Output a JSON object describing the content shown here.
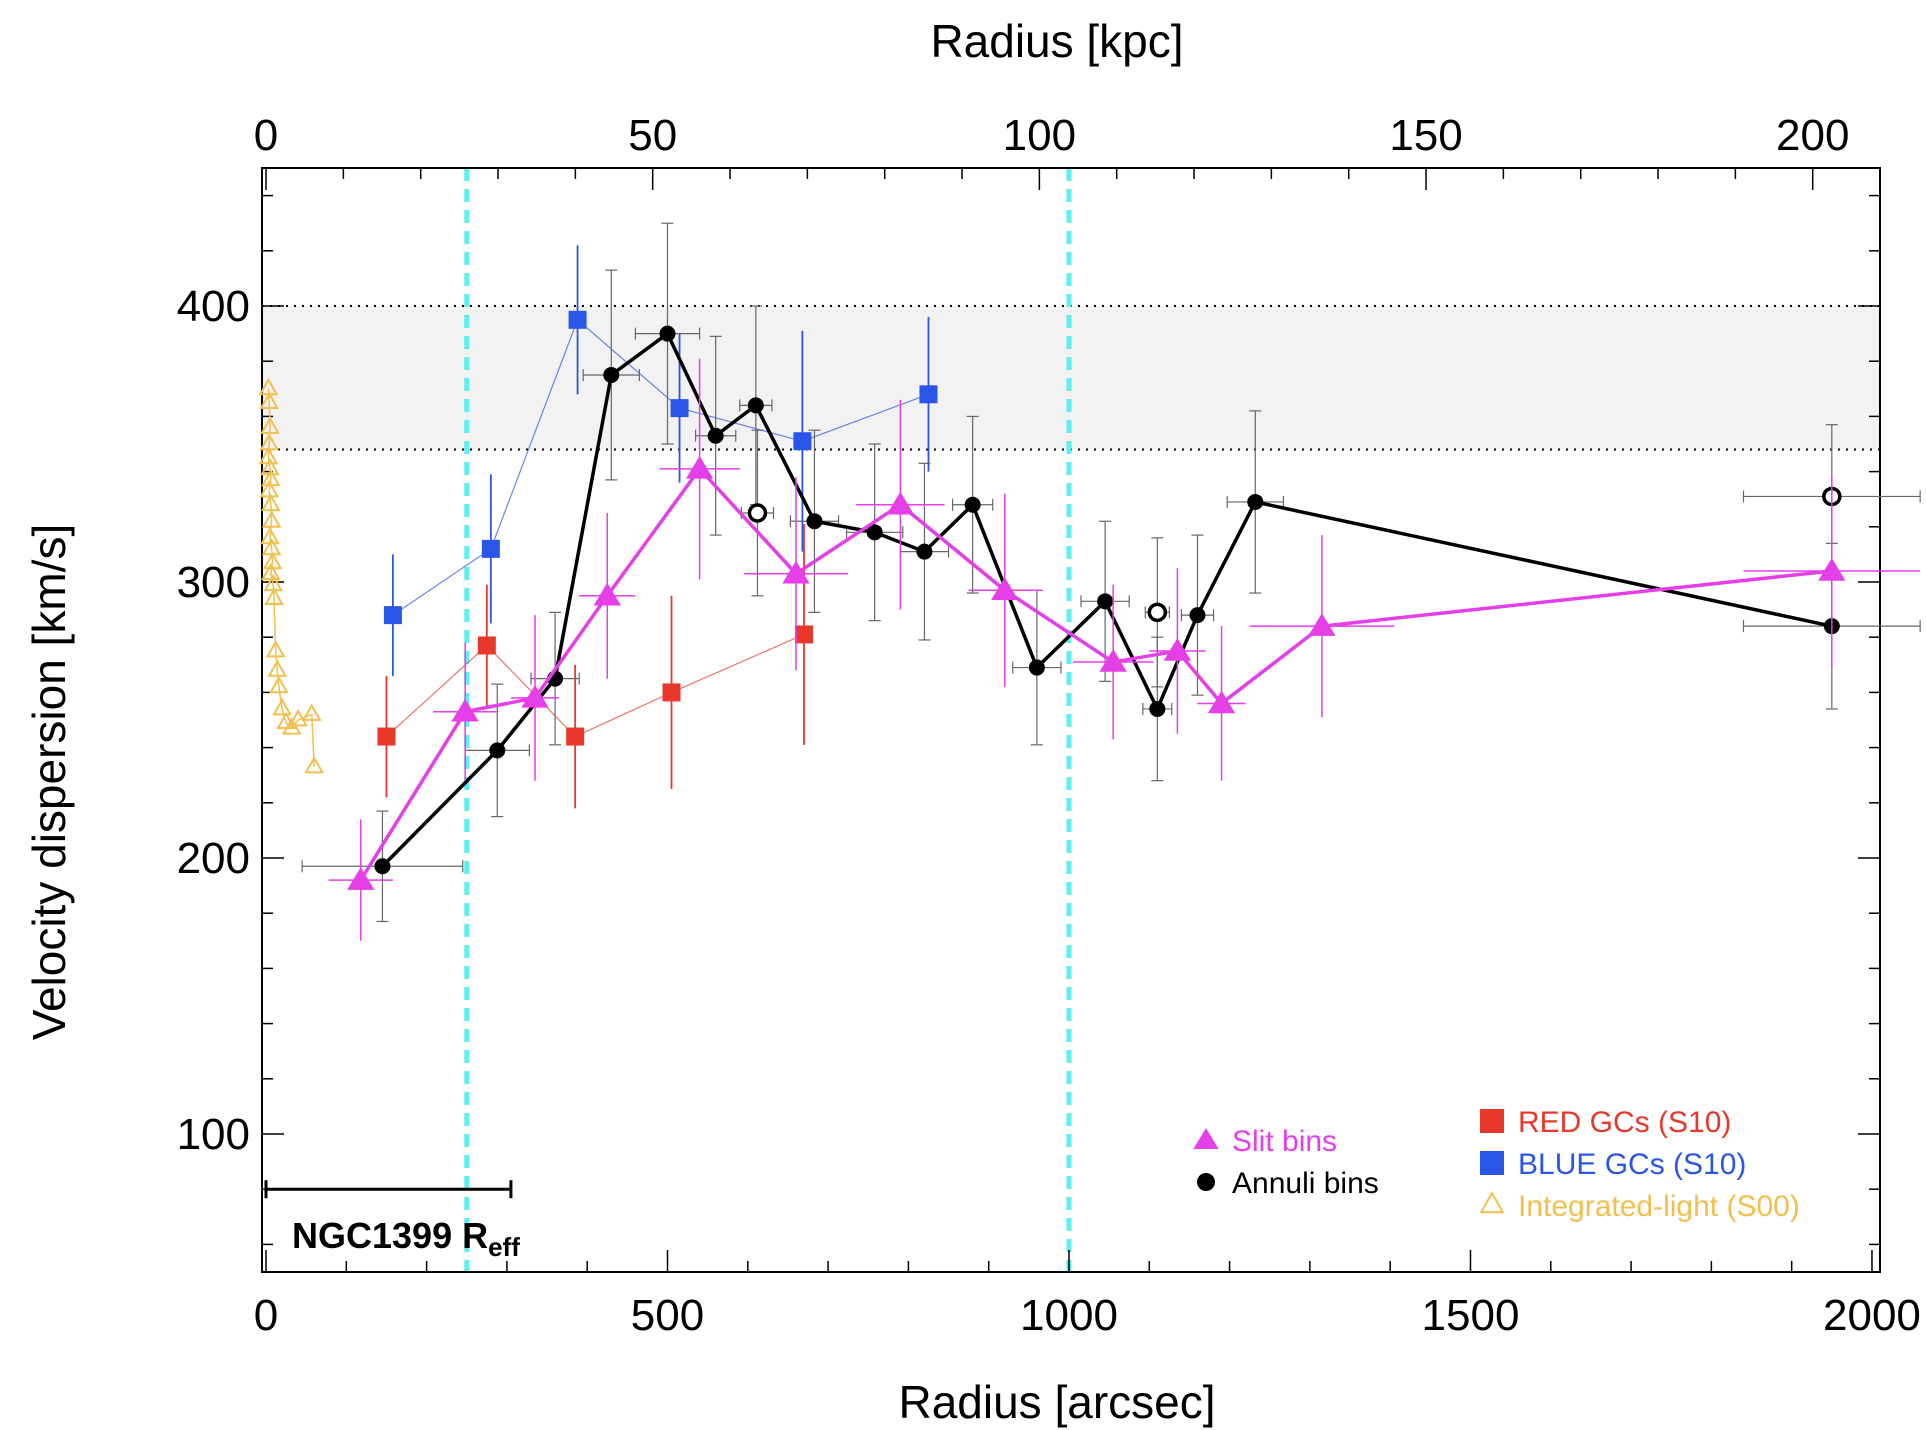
{
  "chart_data": {
    "type": "scatter",
    "xlabel": "Radius [arcsec]",
    "x2label": "Radius [kpc]",
    "ylabel": "Velocity dispersion [km/s]",
    "xlim": [
      -5,
      2010
    ],
    "ylim": [
      50,
      450
    ],
    "x2lim": [
      -0.52,
      208.7
    ],
    "xticks": [
      0,
      500,
      1000,
      1500,
      2000
    ],
    "xtick_labels": [
      "0",
      "500",
      "1000",
      "1500",
      "2000"
    ],
    "x2ticks": [
      0,
      50,
      100,
      150,
      200
    ],
    "x2tick_labels": [
      "0",
      "50",
      "100",
      "150",
      "200"
    ],
    "yticks": [
      100,
      200,
      300,
      400
    ],
    "ytick_labels": [
      "100",
      "200",
      "300",
      "400"
    ],
    "band": {
      "y_low": 348,
      "y_high": 400,
      "color": "#f2f2f2"
    },
    "vlines": [
      250,
      1000
    ],
    "vline_color": "#5cf0f0",
    "reff": {
      "x_start": 0,
      "x_end": 305,
      "y": 80,
      "label": "NGC1399 R",
      "label_sub": "eff"
    },
    "series": [
      {
        "name": "Slit bins",
        "marker": "triangle",
        "color": "#e53fe8",
        "line": true,
        "points": [
          {
            "x": 118,
            "y": 192,
            "xerr": 40,
            "yerr": 22
          },
          {
            "x": 248,
            "y": 253,
            "xerr": 40,
            "yerr": 25
          },
          {
            "x": 335,
            "y": 258,
            "xerr": 30,
            "yerr": 30
          },
          {
            "x": 425,
            "y": 295,
            "xerr": 35,
            "yerr": 30
          },
          {
            "x": 540,
            "y": 341,
            "xerr": 50,
            "yerr": 40
          },
          {
            "x": 660,
            "y": 303,
            "xerr": 65,
            "yerr": 35
          },
          {
            "x": 790,
            "y": 328,
            "xerr": 55,
            "yerr": 38
          },
          {
            "x": 920,
            "y": 297,
            "xerr": 45,
            "yerr": 35
          },
          {
            "x": 1055,
            "y": 271,
            "xerr": 50,
            "yerr": 28
          },
          {
            "x": 1135,
            "y": 275,
            "xerr": 35,
            "yerr": 30
          },
          {
            "x": 1190,
            "y": 256,
            "xerr": 30,
            "yerr": 28
          },
          {
            "x": 1315,
            "y": 284,
            "xerr": 90,
            "yerr": 33
          },
          {
            "x": 1950,
            "y": 304,
            "xerr": 110,
            "yerr": 35
          }
        ]
      },
      {
        "name": "Annuli bins",
        "marker": "circle",
        "color": "#000000",
        "line": true,
        "points": [
          {
            "x": 145,
            "y": 197,
            "xerr": 100,
            "yerr": 20
          },
          {
            "x": 288,
            "y": 239,
            "xerr": 40,
            "yerr": 24
          },
          {
            "x": 360,
            "y": 265,
            "xerr": 30,
            "yerr": 24
          },
          {
            "x": 430,
            "y": 375,
            "xerr": 35,
            "yerr": 38
          },
          {
            "x": 500,
            "y": 390,
            "xerr": 40,
            "yerr": 40
          },
          {
            "x": 560,
            "y": 353,
            "xerr": 25,
            "yerr": 36
          },
          {
            "x": 610,
            "y": 364,
            "xerr": 20,
            "yerr": 36
          },
          {
            "x": 683,
            "y": 322,
            "xerr": 30,
            "yerr": 33
          },
          {
            "x": 758,
            "y": 318,
            "xerr": 35,
            "yerr": 32
          },
          {
            "x": 820,
            "y": 311,
            "xerr": 30,
            "yerr": 32
          },
          {
            "x": 880,
            "y": 328,
            "xerr": 25,
            "yerr": 32
          },
          {
            "x": 960,
            "y": 269,
            "xerr": 30,
            "yerr": 28
          },
          {
            "x": 1045,
            "y": 293,
            "xerr": 30,
            "yerr": 29
          },
          {
            "x": 1110,
            "y": 254,
            "xerr": 18,
            "yerr": 26
          },
          {
            "x": 1160,
            "y": 288,
            "xerr": 20,
            "yerr": 29
          },
          {
            "x": 1232,
            "y": 329,
            "xerr": 35,
            "yerr": 33
          },
          {
            "x": 1950,
            "y": 284,
            "xerr": 110,
            "yerr": 30
          }
        ]
      },
      {
        "name": "Annuli bins (open)",
        "marker": "open-circle",
        "color": "#000000",
        "line": false,
        "points": [
          {
            "x": 612,
            "y": 325,
            "xerr": 20,
            "yerr": 30
          },
          {
            "x": 1110,
            "y": 289,
            "xerr": 15,
            "yerr": 27
          },
          {
            "x": 1950,
            "y": 331,
            "xerr": 110,
            "yerr": 26
          }
        ]
      },
      {
        "name": "RED GCs (S10)",
        "marker": "square",
        "color": "#e8382b",
        "line": true,
        "points": [
          {
            "x": 150,
            "y": 244,
            "yerr": 22
          },
          {
            "x": 275,
            "y": 277,
            "yerr": 22
          },
          {
            "x": 385,
            "y": 244,
            "yerr": 26
          },
          {
            "x": 505,
            "y": 260,
            "yerr": 35
          },
          {
            "x": 670,
            "y": 281,
            "yerr": 40
          }
        ]
      },
      {
        "name": "BLUE GCs (S10)",
        "marker": "square",
        "color": "#2a56e8",
        "line": true,
        "points": [
          {
            "x": 158,
            "y": 288,
            "yerr": 22
          },
          {
            "x": 280,
            "y": 312,
            "yerr": 27
          },
          {
            "x": 388,
            "y": 395,
            "yerr": 27
          },
          {
            "x": 515,
            "y": 363,
            "yerr": 27
          },
          {
            "x": 668,
            "y": 351,
            "yerr": 40
          },
          {
            "x": 825,
            "y": 368,
            "yerr": 28
          }
        ]
      },
      {
        "name": "Integrated-light (S00)",
        "marker": "open-triangle",
        "color": "#f2c04e",
        "line": true,
        "points": [
          {
            "x": 3,
            "y": 370
          },
          {
            "x": 4,
            "y": 365
          },
          {
            "x": 5,
            "y": 356
          },
          {
            "x": 4,
            "y": 350
          },
          {
            "x": 3,
            "y": 345
          },
          {
            "x": 5,
            "y": 341
          },
          {
            "x": 6,
            "y": 337
          },
          {
            "x": 4,
            "y": 333
          },
          {
            "x": 6,
            "y": 328
          },
          {
            "x": 7,
            "y": 322
          },
          {
            "x": 5,
            "y": 316
          },
          {
            "x": 7,
            "y": 312
          },
          {
            "x": 8,
            "y": 307
          },
          {
            "x": 6,
            "y": 303
          },
          {
            "x": 9,
            "y": 299
          },
          {
            "x": 10,
            "y": 294
          },
          {
            "x": 12,
            "y": 275
          },
          {
            "x": 14,
            "y": 268
          },
          {
            "x": 16,
            "y": 262
          },
          {
            "x": 20,
            "y": 254
          },
          {
            "x": 25,
            "y": 249
          },
          {
            "x": 32,
            "y": 247
          },
          {
            "x": 40,
            "y": 250
          },
          {
            "x": 57,
            "y": 252
          },
          {
            "x": 60,
            "y": 233
          }
        ]
      }
    ],
    "legend": {
      "left": [
        {
          "label": "Slit bins",
          "marker": "triangle",
          "color": "#e53fe8",
          "text_color": "#e53fe8"
        },
        {
          "label": "Annuli bins",
          "marker": "circle",
          "color": "#000000",
          "text_color": "#000000"
        }
      ],
      "right": [
        {
          "label": "RED GCs (S10)",
          "marker": "square",
          "color": "#e8382b",
          "text_color": "#e8382b"
        },
        {
          "label": "BLUE GCs (S10)",
          "marker": "square",
          "color": "#2a56e8",
          "text_color": "#2a56e8"
        },
        {
          "label": "Integrated-light (S00)",
          "marker": "open-triangle",
          "color": "#f2c04e",
          "text_color": "#f2c04e"
        }
      ]
    }
  }
}
